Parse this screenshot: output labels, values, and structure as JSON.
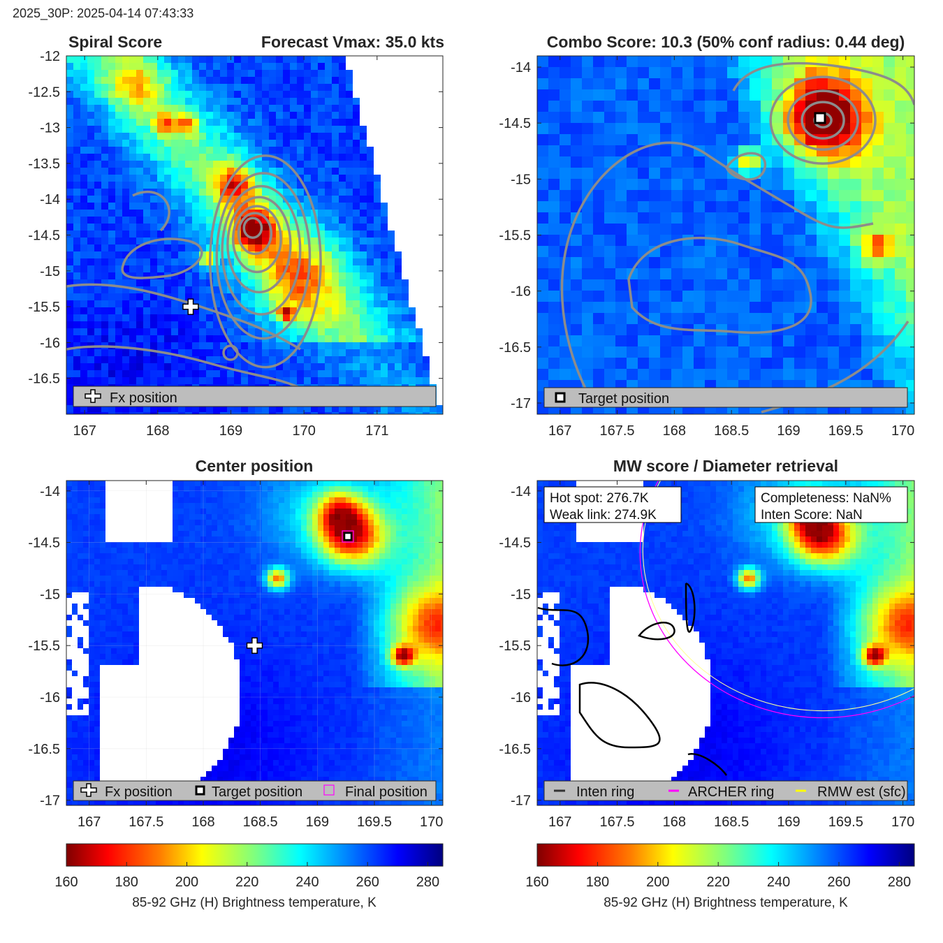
{
  "header": {
    "run_label": "2025_30P: 2025-04-14 07:43:33"
  },
  "colors": {
    "contour": "#8c8c8c",
    "legend_bg": "#bdbdbd",
    "archer_ring": "#ff00ff",
    "rmw_est": "#ffff00",
    "inten_ring": "#000000"
  },
  "panels": {
    "spiral": {
      "title_left": "Spiral Score",
      "title_right": "Forecast Vmax: 35.0 kts",
      "legend": [
        {
          "icon": "fx-position-icon",
          "label": "Fx position"
        }
      ]
    },
    "combo": {
      "title": "Combo Score: 10.3  (50% conf radius: 0.44 deg)",
      "legend": [
        {
          "icon": "target-position-icon",
          "label": "Target position"
        }
      ]
    },
    "center": {
      "title": "Center position",
      "legend": [
        {
          "icon": "fx-position-icon",
          "label": "Fx position"
        },
        {
          "icon": "target-position-icon",
          "label": "Target position"
        },
        {
          "icon": "final-position-icon",
          "label": "Final position"
        }
      ]
    },
    "mw": {
      "title": "MW score / Diameter retrieval",
      "info_left": [
        "Hot spot: 276.7K",
        "Weak link: 274.9K"
      ],
      "info_right": [
        "Completeness: NaN%",
        "Inten Score: NaN"
      ],
      "legend": [
        {
          "icon": "inten-ring-icon",
          "label": "Inten ring"
        },
        {
          "icon": "archer-ring-icon",
          "label": "ARCHER ring"
        },
        {
          "icon": "rmw-est-icon",
          "label": "RMW est (sfc)"
        }
      ]
    }
  },
  "colorbar": {
    "label": "85-92 GHz (H) Brightness temperature, K",
    "ticks": [
      "160",
      "180",
      "200",
      "220",
      "240",
      "260",
      "280"
    ]
  },
  "chart_data": [
    {
      "type": "heatmap",
      "title": "Spiral Score",
      "subtitle": "Forecast Vmax: 35.0 kts",
      "xlim": [
        166.75,
        171.9
      ],
      "ylim": [
        -17.0,
        -12.0
      ],
      "xticks": [
        167,
        168,
        169,
        170,
        171
      ],
      "yticks": [
        -12,
        -12.5,
        -13,
        -13.5,
        -14,
        -14.5,
        -15,
        -15.5,
        -16,
        -16.5
      ],
      "fx_position": [
        168.45,
        -15.5
      ],
      "hot_spots": [
        [
          169.3,
          -14.4
        ],
        [
          169.1,
          -13.8
        ],
        [
          168.7,
          -14.85
        ],
        [
          169.75,
          -15.6
        ],
        [
          168.1,
          -12.95
        ],
        [
          168.4,
          -12.95
        ]
      ],
      "swath_edge": "right diagonal cutoff",
      "legend": [
        "Fx position"
      ]
    },
    {
      "type": "heatmap",
      "title": "Combo Score: 10.3  (50% conf radius: 0.44 deg)",
      "xlim": [
        166.8,
        170.1
      ],
      "ylim": [
        -17.1,
        -13.9
      ],
      "xticks": [
        167,
        167.5,
        168,
        168.5,
        169,
        169.5,
        170
      ],
      "yticks": [
        -14,
        -14.5,
        -15,
        -15.5,
        -16,
        -16.5,
        -17
      ],
      "target_position": [
        169.3,
        -14.45
      ],
      "legend": [
        "Target position"
      ]
    },
    {
      "type": "heatmap",
      "title": "Center position",
      "xlim": [
        166.8,
        170.1
      ],
      "ylim": [
        -17.05,
        -13.9
      ],
      "xticks": [
        167,
        167.5,
        168,
        168.5,
        169,
        169.5,
        170
      ],
      "yticks": [
        -14,
        -14.5,
        -15,
        -15.5,
        -16,
        -16.5,
        -17
      ],
      "fx_position": [
        168.45,
        -15.5
      ],
      "target_position": [
        169.3,
        -14.45
      ],
      "final_position": [
        169.3,
        -14.45
      ],
      "legend": [
        "Fx position",
        "Target position",
        "Final position"
      ]
    },
    {
      "type": "heatmap",
      "title": "MW score / Diameter retrieval",
      "xlim": [
        166.8,
        170.1
      ],
      "ylim": [
        -17.05,
        -13.9
      ],
      "xticks": [
        167,
        167.5,
        168,
        168.5,
        169,
        169.5,
        170
      ],
      "yticks": [
        -14,
        -14.5,
        -15,
        -15.5,
        -16,
        -16.5,
        -17
      ],
      "hot_spot_K": 276.7,
      "weak_link_K": 274.9,
      "completeness": "NaN%",
      "inten_score": "NaN",
      "rings": {
        "archer_center": [
          169.3,
          -14.6
        ],
        "archer_radius_deg": 1.6
      },
      "legend": [
        "Inten ring",
        "ARCHER ring",
        "RMW est (sfc)"
      ]
    },
    {
      "type": "colorbar",
      "label": "85-92 GHz (H) Brightness temperature, K",
      "range": [
        160,
        285
      ],
      "ticks": [
        160,
        180,
        200,
        220,
        240,
        260,
        280
      ],
      "colormap": "jet reversed"
    }
  ]
}
